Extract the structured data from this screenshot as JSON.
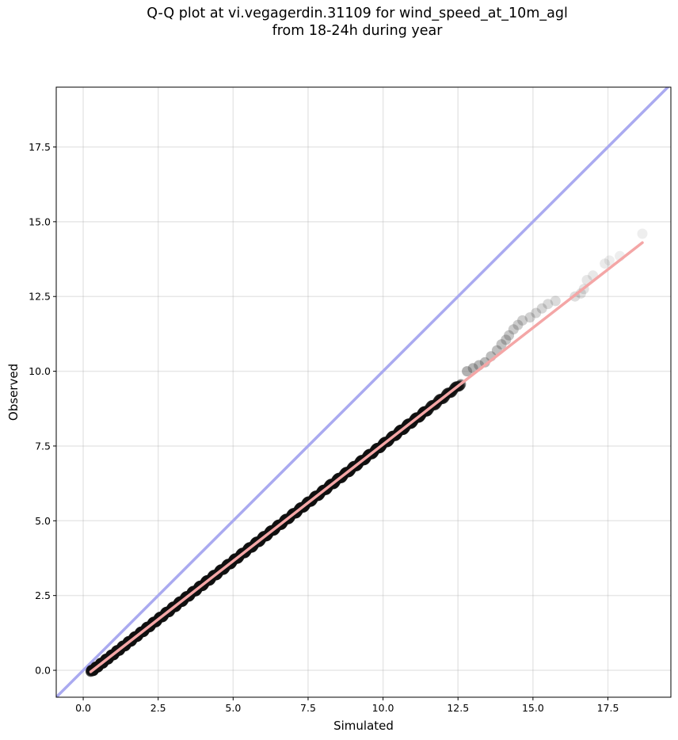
{
  "title_line1": "Q-Q plot at vi.vegagerdin.31109 for wind_speed_at_10m_agl",
  "title_line2": "from 18-24h during year",
  "chart_data": {
    "type": "scatter",
    "title": "Q-Q plot at vi.vegagerdin.31109 for wind_speed_at_10m_agl from 18-24h during year",
    "xlabel": "Simulated",
    "ylabel": "Observed",
    "xlim": [
      -0.9,
      19.6
    ],
    "ylim": [
      -0.9,
      19.5
    ],
    "x_ticks": [
      "0.0",
      "2.5",
      "5.0",
      "7.5",
      "10.0",
      "12.5",
      "15.0",
      "17.5"
    ],
    "y_ticks": [
      "0.0",
      "2.5",
      "5.0",
      "7.5",
      "10.0",
      "12.5",
      "15.0",
      "17.5"
    ],
    "x_tick_values": [
      0,
      2.5,
      5,
      7.5,
      10,
      12.5,
      15,
      17.5
    ],
    "y_tick_values": [
      0,
      2.5,
      5,
      7.5,
      10,
      12.5,
      15,
      17.5
    ],
    "grid": true,
    "identity_line": {
      "from": [
        -0.9,
        -0.9
      ],
      "to": [
        19.6,
        19.6
      ],
      "color": "#aaaaf0"
    },
    "regression_line": {
      "from": [
        0.25,
        -0.05
      ],
      "to": [
        18.65,
        14.3
      ],
      "color": "#f4a6a6"
    },
    "dense_quantiles": {
      "x_range": [
        0.25,
        12.6
      ],
      "color": "#111111"
    },
    "points": [
      {
        "x": 12.8,
        "y": 10.0
      },
      {
        "x": 13.0,
        "y": 10.1
      },
      {
        "x": 13.2,
        "y": 10.2
      },
      {
        "x": 13.4,
        "y": 10.3
      },
      {
        "x": 13.6,
        "y": 10.5
      },
      {
        "x": 13.8,
        "y": 10.7
      },
      {
        "x": 13.95,
        "y": 10.9
      },
      {
        "x": 14.1,
        "y": 11.05
      },
      {
        "x": 14.2,
        "y": 11.2
      },
      {
        "x": 14.35,
        "y": 11.4
      },
      {
        "x": 14.5,
        "y": 11.55
      },
      {
        "x": 14.65,
        "y": 11.7
      },
      {
        "x": 14.9,
        "y": 11.8
      },
      {
        "x": 15.1,
        "y": 11.95
      },
      {
        "x": 15.3,
        "y": 12.1
      },
      {
        "x": 15.5,
        "y": 12.25
      },
      {
        "x": 15.75,
        "y": 12.35
      },
      {
        "x": 16.4,
        "y": 12.5
      },
      {
        "x": 16.6,
        "y": 12.6
      },
      {
        "x": 16.7,
        "y": 12.75
      },
      {
        "x": 16.8,
        "y": 13.05
      },
      {
        "x": 17.0,
        "y": 13.2
      },
      {
        "x": 17.4,
        "y": 13.6
      },
      {
        "x": 17.55,
        "y": 13.7
      },
      {
        "x": 17.9,
        "y": 13.85
      },
      {
        "x": 18.65,
        "y": 14.6
      }
    ]
  }
}
